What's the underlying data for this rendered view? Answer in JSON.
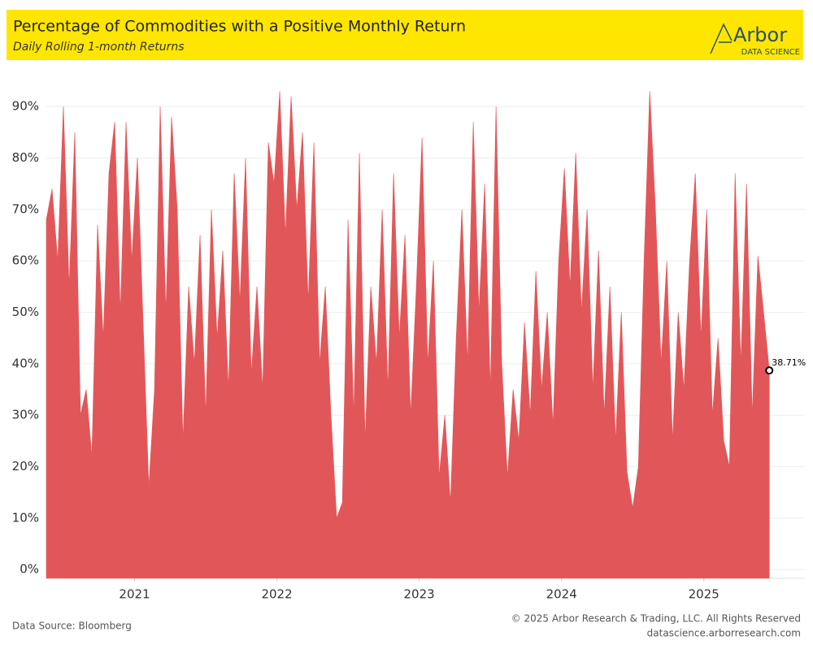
{
  "header": {
    "title": "Percentage of Commodities with a Positive Monthly Return",
    "subtitle": "Daily Rolling 1-month Returns",
    "logo": "Arbor",
    "logo_sub": "DATA SCIENCE"
  },
  "chart_data": {
    "type": "area",
    "color": "#e15759",
    "grid": true,
    "xlim": [
      2020.38,
      2025.71
    ],
    "xticks": [
      2021,
      2022,
      2023,
      2024,
      2025
    ],
    "ylim": [
      -1.7,
      97.3
    ],
    "yticks": [
      {
        "value": 0,
        "label": "0%"
      },
      {
        "value": 10,
        "label": "10%"
      },
      {
        "value": 20,
        "label": "20%"
      },
      {
        "value": 30,
        "label": "30%"
      },
      {
        "value": 40,
        "label": "40%"
      },
      {
        "value": 50,
        "label": "50%"
      },
      {
        "value": 60,
        "label": "60%"
      },
      {
        "value": 70,
        "label": "70%"
      },
      {
        "value": 80,
        "label": "80%"
      },
      {
        "value": 90,
        "label": "90%"
      }
    ],
    "x": [
      2020.38,
      2020.42,
      2020.46,
      2020.5,
      2020.54,
      2020.58,
      2020.62,
      2020.66,
      2020.7,
      2020.74,
      2020.78,
      2020.82,
      2020.86,
      2020.9,
      2020.94,
      2020.98,
      2021.02,
      2021.06,
      2021.1,
      2021.14,
      2021.18,
      2021.22,
      2021.26,
      2021.3,
      2021.34,
      2021.38,
      2021.42,
      2021.46,
      2021.5,
      2021.54,
      2021.58,
      2021.62,
      2021.66,
      2021.7,
      2021.74,
      2021.78,
      2021.82,
      2021.86,
      2021.9,
      2021.94,
      2021.98,
      2022.02,
      2022.06,
      2022.1,
      2022.14,
      2022.18,
      2022.22,
      2022.26,
      2022.3,
      2022.34,
      2022.38,
      2022.42,
      2022.46,
      2022.5,
      2022.54,
      2022.58,
      2022.62,
      2022.66,
      2022.7,
      2022.74,
      2022.78,
      2022.82,
      2022.86,
      2022.9,
      2022.94,
      2022.98,
      2023.02,
      2023.06,
      2023.1,
      2023.14,
      2023.18,
      2023.22,
      2023.26,
      2023.3,
      2023.34,
      2023.38,
      2023.42,
      2023.46,
      2023.5,
      2023.54,
      2023.58,
      2023.62,
      2023.66,
      2023.7,
      2023.74,
      2023.78,
      2023.82,
      2023.86,
      2023.9,
      2023.94,
      2023.98,
      2024.02,
      2024.06,
      2024.1,
      2024.14,
      2024.18,
      2024.22,
      2024.26,
      2024.3,
      2024.34,
      2024.38,
      2024.42,
      2024.46,
      2024.5,
      2024.54,
      2024.58,
      2024.62,
      2024.66,
      2024.7,
      2024.74,
      2024.78,
      2024.82,
      2024.86,
      2024.9,
      2024.94,
      2024.98,
      2025.02,
      2025.06,
      2025.1,
      2025.14,
      2025.18,
      2025.22,
      2025.26,
      2025.3,
      2025.34,
      2025.38,
      2025.42,
      2025.46
    ],
    "values": [
      68,
      74,
      60,
      90,
      55,
      85,
      30,
      35,
      22,
      67,
      45,
      77,
      87,
      50,
      87,
      60,
      80,
      48,
      16,
      35,
      90,
      50,
      88,
      70,
      25,
      55,
      40,
      65,
      30,
      70,
      45,
      62,
      35,
      77,
      52,
      80,
      38,
      55,
      35,
      83,
      75,
      93,
      65,
      92,
      70,
      85,
      52,
      83,
      40,
      55,
      30,
      10,
      13,
      68,
      30,
      81,
      25,
      55,
      40,
      70,
      35,
      77,
      45,
      65,
      30,
      55,
      84,
      40,
      60,
      18,
      30,
      13,
      45,
      70,
      40,
      87,
      50,
      75,
      35,
      90,
      40,
      18,
      35,
      25,
      48,
      30,
      58,
      35,
      50,
      28,
      60,
      78,
      55,
      81,
      50,
      70,
      35,
      62,
      30,
      55,
      25,
      50,
      19,
      12,
      20,
      60,
      93,
      70,
      40,
      60,
      25,
      50,
      35,
      60,
      77,
      45,
      70,
      30,
      45,
      25,
      20,
      77,
      40,
      75,
      30,
      61,
      50,
      38.71
    ],
    "annotations": [
      {
        "text": "38.71%"
      }
    ]
  },
  "footer": {
    "source": "Data Source: Bloomberg",
    "copyright": "© 2025 Arbor Research & Trading, LLC. All Rights Reserved",
    "url": "datascience.arborresearch.com"
  }
}
